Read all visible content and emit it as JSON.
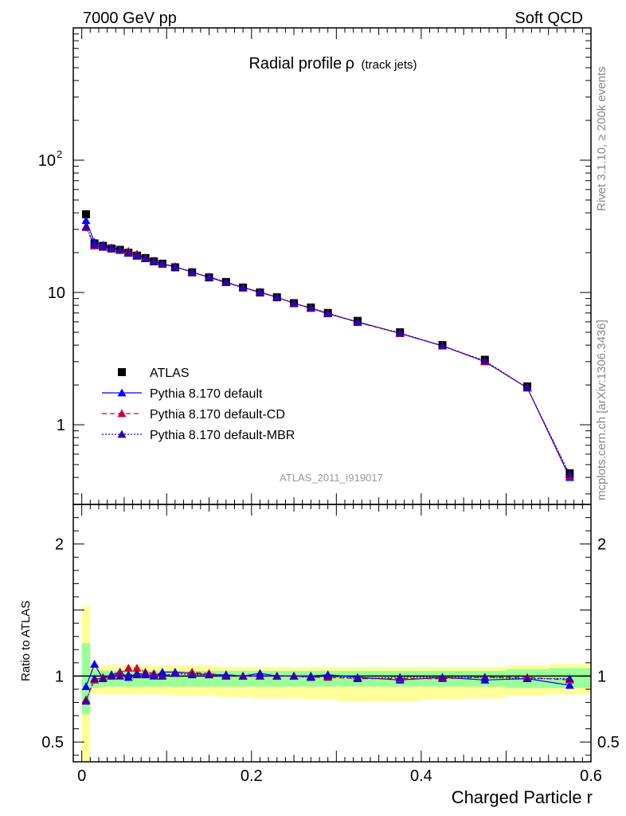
{
  "header": {
    "left": "7000 GeV pp",
    "right": "Soft QCD"
  },
  "side_labels": {
    "rivet": "Rivet 3.1.10, ≥ 200k events",
    "mcplots": "mcplots.cern.ch [arXiv:1306.3436]"
  },
  "chart_data": [
    {
      "panel": "main",
      "type": "scatter",
      "title_main": "Radial profile",
      "title_symbol": "ρ",
      "title_sub": "(track jets)",
      "watermark": "ATLAS_2011_I919017",
      "xlim": [
        -0.01,
        0.6
      ],
      "ylim": [
        0.25,
        1000
      ],
      "yscale": "log",
      "ytick_labels": [
        {
          "value": 1,
          "label": "1"
        },
        {
          "value": 10,
          "label": "10"
        },
        {
          "value": 100,
          "label": "10",
          "sup": "2"
        }
      ],
      "legend_placement": "lower-left",
      "x": [
        0.005,
        0.015,
        0.025,
        0.035,
        0.045,
        0.055,
        0.065,
        0.075,
        0.085,
        0.095,
        0.11,
        0.13,
        0.15,
        0.17,
        0.19,
        0.21,
        0.23,
        0.25,
        0.27,
        0.29,
        0.325,
        0.375,
        0.425,
        0.475,
        0.525,
        0.575
      ],
      "series": [
        {
          "name": "ATLAS",
          "marker": "square",
          "color": "#000000",
          "values": [
            39.0,
            23.5,
            22.5,
            21.5,
            21.0,
            20.0,
            19.0,
            18.2,
            17.2,
            16.5,
            15.5,
            14.2,
            13.0,
            12.0,
            10.9,
            10.0,
            9.2,
            8.3,
            7.7,
            7.0,
            6.1,
            5.0,
            4.0,
            3.1,
            1.95,
            0.43
          ]
        },
        {
          "name": "Pythia 8.170 default",
          "marker": "triangle",
          "line": "solid",
          "color": "#0000ff",
          "values": [
            35.0,
            24.0,
            22.8,
            21.8,
            21.0,
            19.8,
            19.0,
            18.0,
            17.2,
            16.4,
            15.6,
            14.3,
            13.0,
            11.9,
            10.9,
            10.1,
            9.2,
            8.3,
            7.6,
            6.9,
            6.0,
            4.9,
            3.95,
            3.0,
            1.9,
            0.4
          ]
        },
        {
          "name": "Pythia 8.170 default-CD",
          "marker": "triangle",
          "line": "dashed",
          "color": "#cc0033",
          "values": [
            31.0,
            22.5,
            22.2,
            21.5,
            21.0,
            20.5,
            19.5,
            18.3,
            17.3,
            16.5,
            15.7,
            14.2,
            13.1,
            12.0,
            10.9,
            10.0,
            9.2,
            8.3,
            7.6,
            6.95,
            5.95,
            4.9,
            3.95,
            3.0,
            1.9,
            0.41
          ]
        },
        {
          "name": "Pythia 8.170 default-MBR",
          "marker": "triangle",
          "line": "dotted",
          "color": "#3300aa",
          "values": [
            31.5,
            23.0,
            22.0,
            21.5,
            21.0,
            20.0,
            19.2,
            18.2,
            17.3,
            16.5,
            15.7,
            14.2,
            13.1,
            12.0,
            10.9,
            10.0,
            9.2,
            8.3,
            7.65,
            7.0,
            5.95,
            4.95,
            3.95,
            3.05,
            1.9,
            0.42
          ]
        }
      ]
    },
    {
      "panel": "ratio",
      "type": "scatter",
      "ylabel": "Ratio to ATLAS",
      "xlabel": "Charged Particle r",
      "xlim": [
        -0.01,
        0.6
      ],
      "ylim": [
        0.35,
        2.3
      ],
      "xtick_labels": [
        {
          "value": 0,
          "label": "0"
        },
        {
          "value": 0.2,
          "label": "0.2"
        },
        {
          "value": 0.4,
          "label": "0.4"
        },
        {
          "value": 0.6,
          "label": "0.6"
        }
      ],
      "ytick_labels": [
        {
          "value": 0.5,
          "label": "0.5"
        },
        {
          "value": 1,
          "label": "1"
        },
        {
          "value": 2,
          "label": "2"
        }
      ],
      "bands": {
        "edges": [
          0,
          0.01,
          0.02,
          0.03,
          0.04,
          0.05,
          0.06,
          0.07,
          0.08,
          0.09,
          0.1,
          0.12,
          0.14,
          0.16,
          0.18,
          0.2,
          0.22,
          0.24,
          0.26,
          0.28,
          0.3,
          0.35,
          0.4,
          0.45,
          0.5,
          0.55,
          0.6
        ],
        "yellow_lo": [
          0.35,
          0.87,
          0.86,
          0.86,
          0.86,
          0.86,
          0.86,
          0.86,
          0.86,
          0.86,
          0.85,
          0.85,
          0.85,
          0.84,
          0.84,
          0.83,
          0.83,
          0.83,
          0.82,
          0.82,
          0.81,
          0.81,
          0.82,
          0.83,
          0.85,
          0.86
        ],
        "yellow_hi": [
          1.53,
          1.09,
          1.08,
          1.08,
          1.08,
          1.08,
          1.08,
          1.08,
          1.08,
          1.08,
          1.08,
          1.08,
          1.08,
          1.07,
          1.07,
          1.07,
          1.07,
          1.07,
          1.07,
          1.07,
          1.07,
          1.07,
          1.07,
          1.07,
          1.08,
          1.09
        ],
        "green_lo": [
          0.71,
          0.91,
          0.92,
          0.92,
          0.92,
          0.92,
          0.92,
          0.92,
          0.92,
          0.92,
          0.92,
          0.92,
          0.92,
          0.92,
          0.92,
          0.92,
          0.92,
          0.92,
          0.92,
          0.92,
          0.92,
          0.92,
          0.92,
          0.92,
          0.91,
          0.91
        ],
        "green_hi": [
          1.25,
          1.05,
          1.04,
          1.04,
          1.04,
          1.04,
          1.04,
          1.04,
          1.04,
          1.04,
          1.04,
          1.04,
          1.04,
          1.04,
          1.04,
          1.04,
          1.04,
          1.04,
          1.04,
          1.04,
          1.04,
          1.04,
          1.04,
          1.04,
          1.05,
          1.06
        ],
        "yellow_color": "#ffff99",
        "green_color": "#99ff99"
      },
      "x": [
        0.005,
        0.015,
        0.025,
        0.035,
        0.045,
        0.055,
        0.065,
        0.075,
        0.085,
        0.095,
        0.11,
        0.13,
        0.15,
        0.17,
        0.19,
        0.21,
        0.23,
        0.25,
        0.27,
        0.29,
        0.325,
        0.375,
        0.425,
        0.475,
        0.525,
        0.575
      ],
      "series": [
        {
          "name": "Pythia 8.170 default",
          "color": "#0000ff",
          "line": "solid",
          "values": [
            0.92,
            1.09,
            0.98,
            1.01,
            1.03,
            0.99,
            1.02,
            1.01,
            1.0,
            1.03,
            1.03,
            1.02,
            1.01,
            1.01,
            1.0,
            1.02,
            1.0,
            1.0,
            1.0,
            1.01,
            0.99,
            0.97,
            0.99,
            0.97,
            0.98,
            0.93
          ]
        },
        {
          "name": "Pythia 8.170 default-CD",
          "color": "#cc0033",
          "line": "dashed",
          "values": [
            0.82,
            0.97,
            0.99,
            1.0,
            1.02,
            1.06,
            1.06,
            1.03,
            1.02,
            1.0,
            1.02,
            1.03,
            1.02,
            1.0,
            1.0,
            1.0,
            1.0,
            1.0,
            0.99,
            0.99,
            0.98,
            0.98,
            0.98,
            0.99,
            0.99,
            0.97
          ]
        },
        {
          "name": "Pythia 8.170 default-MBR",
          "color": "#3300aa",
          "line": "dotted",
          "values": [
            0.81,
            0.98,
            0.98,
            1.0,
            1.0,
            1.01,
            1.01,
            1.02,
            1.01,
            1.0,
            1.02,
            1.01,
            1.01,
            1.0,
            1.0,
            1.0,
            1.0,
            1.0,
            0.99,
            1.0,
            0.98,
            0.99,
            0.99,
            0.99,
            0.98,
            0.98
          ]
        }
      ]
    }
  ]
}
